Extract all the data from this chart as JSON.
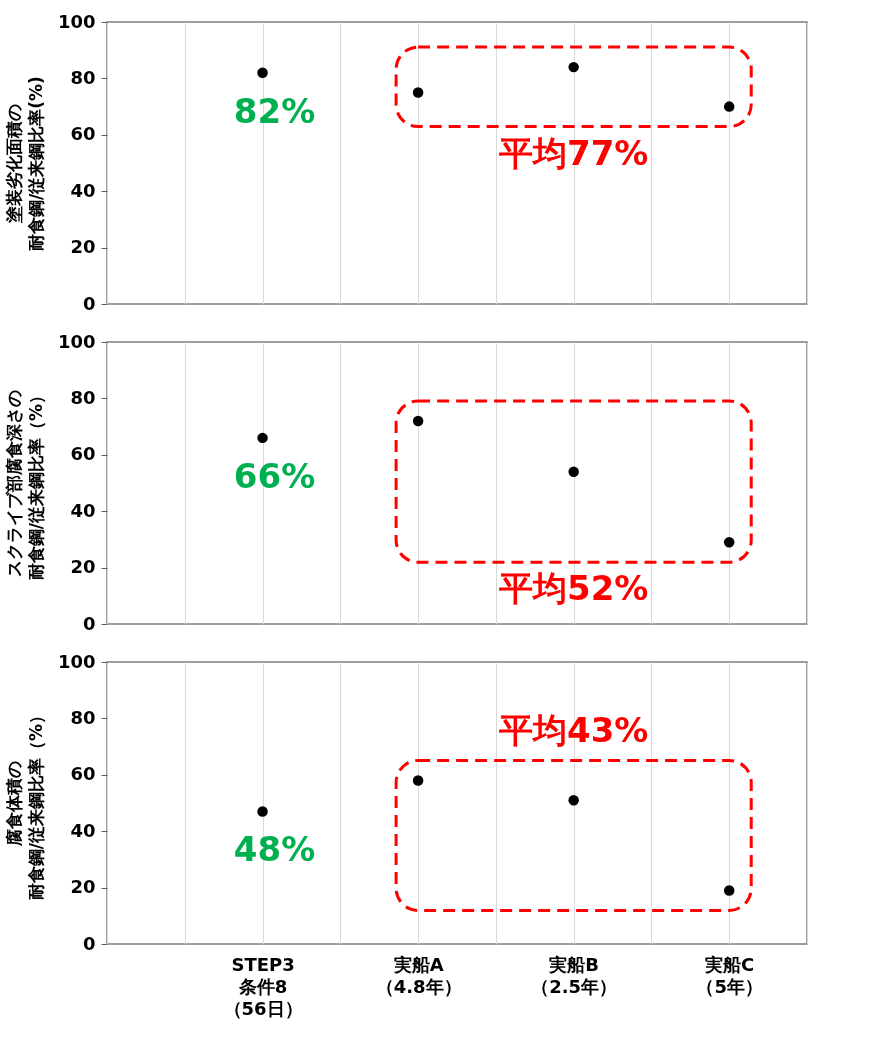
{
  "chart_data": [
    {
      "type": "scatter",
      "ylabel": "塗装劣化面積の耐食鋼/従来鋼比率(%)",
      "categories": [
        null,
        null,
        "STEP3\n条件8\n（56日）",
        null,
        "実船A\n（4.8年）",
        null,
        "実船B\n（2.5年）",
        null,
        "実船C\n（5年）",
        null
      ],
      "series": [
        {
          "color": "#000000",
          "x": [
            "STEP3\n条件8\n（56日）"
          ],
          "values": [
            82
          ]
        },
        {
          "color": "#000000",
          "x": [
            "実船A\n（4.8年）",
            "実船B\n（2.5年）",
            "実船C\n（5年）"
          ],
          "values": [
            75,
            84,
            70
          ]
        }
      ],
      "ylim": [
        0,
        100
      ],
      "yticks": [
        0,
        20,
        40,
        60,
        80,
        100
      ],
      "grid": "x",
      "marker": "circle",
      "tick_labels": "y",
      "annotations": [
        "82%",
        "平均77%"
      ]
    },
    {
      "type": "scatter",
      "ylabel": "スクライブ部腐食深さの耐食鋼/従来鋼比率（%）",
      "categories": [
        null,
        null,
        "STEP3\n条件8\n（56日）",
        null,
        "実船A\n（4.8年）",
        null,
        "実船B\n（2.5年）",
        null,
        "実船C\n（5年）",
        null
      ],
      "series": [
        {
          "color": "#000000",
          "x": [
            "STEP3\n条件8\n（56日）"
          ],
          "values": [
            66
          ]
        },
        {
          "color": "#000000",
          "x": [
            "実船A\n（4.8年）",
            "実船B\n（2.5年）",
            "実船C\n（5年）"
          ],
          "values": [
            72,
            54,
            29
          ]
        }
      ],
      "ylim": [
        0,
        100
      ],
      "yticks": [
        0,
        20,
        40,
        60,
        80,
        100
      ],
      "grid": "x",
      "marker": "circle",
      "tick_labels": "y",
      "annotations": [
        "66%",
        "平均52%"
      ]
    },
    {
      "type": "scatter",
      "ylabel": "腐食体積の耐食鋼/従来鋼比率（%）",
      "categories": [
        null,
        null,
        "STEP3\n条件8\n（56日）",
        null,
        "実船A\n（4.8年）",
        null,
        "実船B\n（2.5年）",
        null,
        "実船C\n（5年）",
        null
      ],
      "series": [
        {
          "color": "#000000",
          "x": [
            "STEP3\n条件8\n（56日）"
          ],
          "values": [
            47
          ]
        },
        {
          "color": "#000000",
          "x": [
            "実船A\n（4.8年）",
            "実船B\n（2.5年）",
            "実船C\n（5年）"
          ],
          "values": [
            58,
            51,
            19
          ]
        }
      ],
      "ylim": [
        0,
        100
      ],
      "yticks": [
        0,
        20,
        40,
        60,
        80,
        100
      ],
      "grid": "x",
      "marker": "circle",
      "annotations": [
        "48%",
        "平均43%"
      ]
    }
  ]
}
